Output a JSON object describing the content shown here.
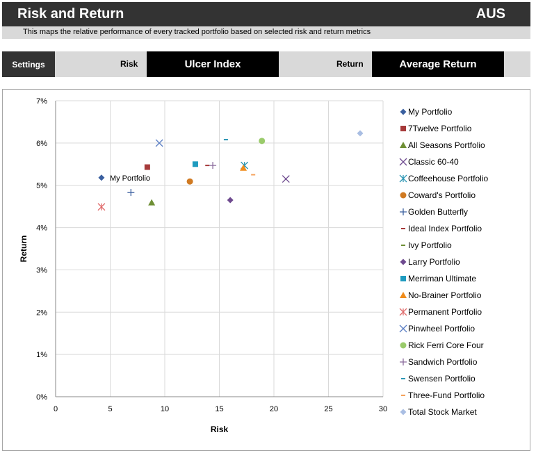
{
  "header": {
    "title": "Risk and Return",
    "country": "AUS",
    "subtitle": "This maps the relative performance of every tracked portfolio based on selected risk and return metrics"
  },
  "settings": {
    "settings_label": "Settings",
    "risk_label": "Risk",
    "risk_value": "Ulcer Index",
    "return_label": "Return",
    "return_value": "Average Return"
  },
  "chart_data": {
    "type": "scatter",
    "xlabel": "Risk",
    "ylabel": "Return",
    "xlim": [
      0,
      30
    ],
    "ylim": [
      0,
      7
    ],
    "x_ticks": [
      0,
      5,
      10,
      15,
      20,
      25,
      30
    ],
    "y_ticks": [
      0,
      1,
      2,
      3,
      4,
      5,
      6,
      7
    ],
    "y_tick_labels": [
      "0%",
      "1%",
      "2%",
      "3%",
      "4%",
      "5%",
      "6%",
      "7%"
    ],
    "grid": "vertical and horizontal",
    "legend": "right",
    "annotation": "My Portfolio",
    "series": [
      {
        "name": "My Portfolio",
        "marker": "diamond",
        "color": "#3a5f9f",
        "x": 4.2,
        "y": 5.18
      },
      {
        "name": "7Twelve Portfolio",
        "marker": "square",
        "color": "#a63a3a",
        "x": 8.4,
        "y": 5.43
      },
      {
        "name": "All Seasons Portfolio",
        "marker": "triangle",
        "color": "#6e8f35",
        "x": 8.8,
        "y": 4.59
      },
      {
        "name": "Classic 60-40",
        "marker": "x",
        "color": "#6e4a8f",
        "x": 21.1,
        "y": 5.15
      },
      {
        "name": "Coffeehouse Portfolio",
        "marker": "asterisk",
        "color": "#2e97b5",
        "x": 17.3,
        "y": 5.47
      },
      {
        "name": "Coward's Portfolio",
        "marker": "circle",
        "color": "#d07a22",
        "x": 12.3,
        "y": 5.09
      },
      {
        "name": "Golden Butterfly",
        "marker": "plus",
        "color": "#3a5f9f",
        "x": 6.9,
        "y": 4.83
      },
      {
        "name": "Ideal Index Portfolio",
        "marker": "dash",
        "color": "#a63a3a",
        "x": 13.9,
        "y": 5.47
      },
      {
        "name": "Ivy Portfolio",
        "marker": "dash",
        "color": "#6e8f35",
        "x": null,
        "y": null
      },
      {
        "name": "Larry Portfolio",
        "marker": "diamond",
        "color": "#6e4a8f",
        "x": 16.0,
        "y": 4.65
      },
      {
        "name": "Merriman Ultimate",
        "marker": "square",
        "color": "#1f9bbf",
        "x": 12.8,
        "y": 5.5
      },
      {
        "name": "No-Brainer Portfolio",
        "marker": "triangle",
        "color": "#f08c1c",
        "x": 17.2,
        "y": 5.41
      },
      {
        "name": "Permanent Portfolio",
        "marker": "asterisk",
        "color": "#e06c6c",
        "x": 4.2,
        "y": 4.49
      },
      {
        "name": "Pinwheel Portfolio",
        "marker": "x",
        "color": "#5b7fc4",
        "x": 9.5,
        "y": 6.0
      },
      {
        "name": "Rick Ferri Core Four",
        "marker": "circle",
        "color": "#9acb6b",
        "x": 18.9,
        "y": 6.05
      },
      {
        "name": "Sandwich Portfolio",
        "marker": "plus",
        "color": "#8a6a9c",
        "x": 14.4,
        "y": 5.47
      },
      {
        "name": "Swensen Portfolio",
        "marker": "dash",
        "color": "#2e97b5",
        "x": 15.6,
        "y": 6.08
      },
      {
        "name": "Three-Fund Portfolio",
        "marker": "dash",
        "color": "#f5a25c",
        "x": 18.1,
        "y": 5.25
      },
      {
        "name": "Total Stock Market",
        "marker": "diamond",
        "color": "#a9bee3",
        "x": 27.9,
        "y": 6.23
      }
    ]
  }
}
